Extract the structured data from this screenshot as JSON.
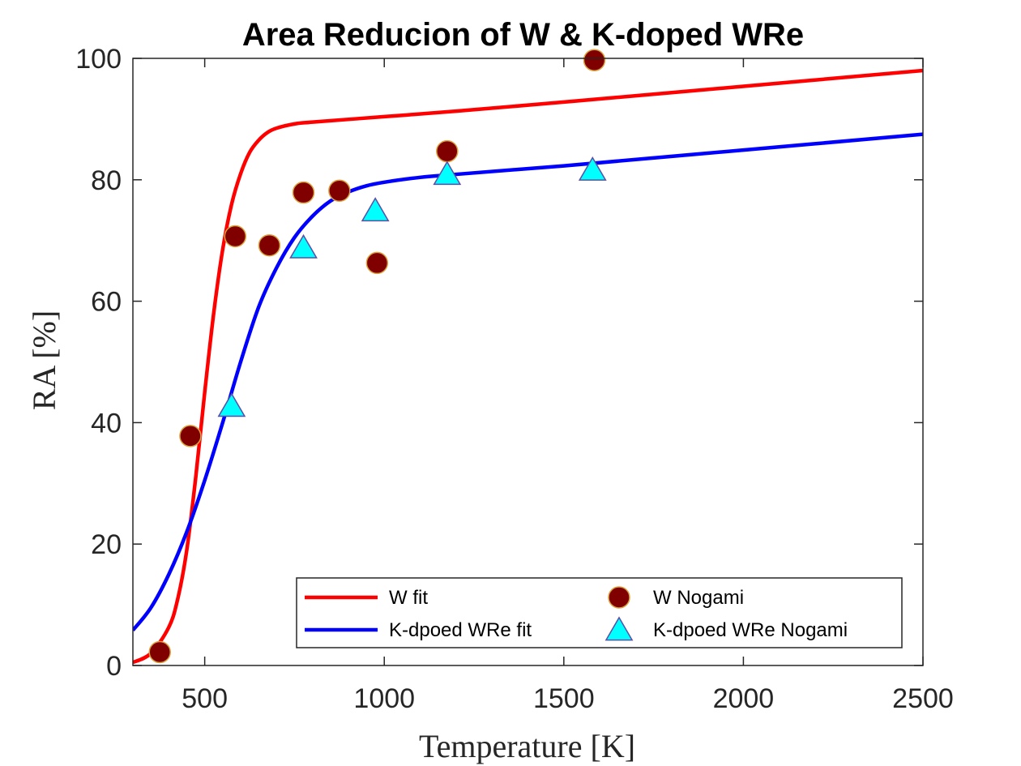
{
  "chart_data": {
    "type": "line",
    "title": "Area Reducion of W & K-doped WRe",
    "xlabel": "Temperature [K]",
    "ylabel": "RA [%]",
    "xlim": [
      300,
      2500
    ],
    "ylim": [
      0,
      100
    ],
    "xticks": [
      500,
      1000,
      1500,
      2000,
      2500
    ],
    "yticks": [
      0,
      20,
      40,
      60,
      80,
      100
    ],
    "grid": false,
    "legend_position": "bottom-right",
    "series": [
      {
        "name": "W fit",
        "kind": "line",
        "color": "#ff0000",
        "x": [
          300,
          350,
          400,
          425,
          450,
          475,
          500,
          525,
          550,
          575,
          600,
          625,
          650,
          675,
          700,
          750,
          800,
          1000,
          1200,
          1500,
          2000,
          2500
        ],
        "y": [
          0.5,
          2,
          6.3,
          11,
          19,
          31,
          45,
          58,
          68.5,
          76,
          81,
          84.5,
          86.5,
          87.8,
          88.5,
          89.2,
          89.5,
          90.4,
          91.3,
          92.8,
          95.4,
          98.0
        ]
      },
      {
        "name": "K-dpoed WRe fit",
        "kind": "line",
        "color": "#0000ff",
        "x": [
          300,
          350,
          400,
          450,
          500,
          550,
          600,
          650,
          700,
          750,
          800,
          850,
          900,
          950,
          1000,
          1100,
          1200,
          1500,
          2000,
          2500
        ],
        "y": [
          5.8,
          9.5,
          15,
          22,
          30.5,
          40,
          50,
          59,
          65.5,
          70.5,
          74,
          76.5,
          78,
          79,
          79.6,
          80.4,
          80.9,
          82.3,
          84.9,
          87.5
        ]
      },
      {
        "name": "W Nogami",
        "kind": "scatter",
        "marker": "circle",
        "color": "#800000",
        "edge_color": "#d9a441",
        "x": [
          375,
          460,
          585,
          680,
          775,
          875,
          980,
          1175,
          1585
        ],
        "y": [
          2.2,
          37.8,
          70.7,
          69.2,
          77.9,
          78.2,
          66.3,
          84.7,
          99.7
        ]
      },
      {
        "name": "K-dpoed WRe Nogami",
        "kind": "scatter",
        "marker": "triangle",
        "color": "#00ffff",
        "edge_color": "#5a4ea8",
        "x": [
          575,
          775,
          975,
          1175,
          1580
        ],
        "y": [
          42.6,
          68.7,
          74.8,
          80.8,
          81.5
        ]
      }
    ]
  }
}
